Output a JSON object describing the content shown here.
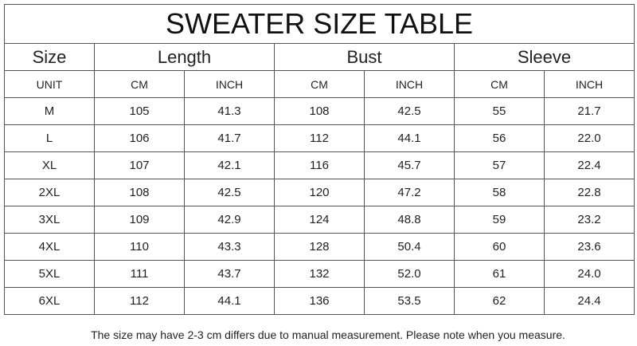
{
  "title": "SWEATER SIZE TABLE",
  "header": [
    "Size",
    "Length",
    "Bust",
    "Sleeve"
  ],
  "units": [
    "UNIT",
    "CM",
    "INCH",
    "CM",
    "INCH",
    "CM",
    "INCH"
  ],
  "rows": [
    [
      "M",
      "105",
      "41.3",
      "108",
      "42.5",
      "55",
      "21.7"
    ],
    [
      "L",
      "106",
      "41.7",
      "112",
      "44.1",
      "56",
      "22.0"
    ],
    [
      "XL",
      "107",
      "42.1",
      "116",
      "45.7",
      "57",
      "22.4"
    ],
    [
      "2XL",
      "108",
      "42.5",
      "120",
      "47.2",
      "58",
      "22.8"
    ],
    [
      "3XL",
      "109",
      "42.9",
      "124",
      "48.8",
      "59",
      "23.2"
    ],
    [
      "4XL",
      "110",
      "43.3",
      "128",
      "50.4",
      "60",
      "23.6"
    ],
    [
      "5XL",
      "111",
      "43.7",
      "132",
      "52.0",
      "61",
      "24.0"
    ],
    [
      "6XL",
      "112",
      "44.1",
      "136",
      "53.5",
      "62",
      "24.4"
    ]
  ],
  "note": "The size may have 2-3 cm differs due to manual measurement. Please note when you measure."
}
